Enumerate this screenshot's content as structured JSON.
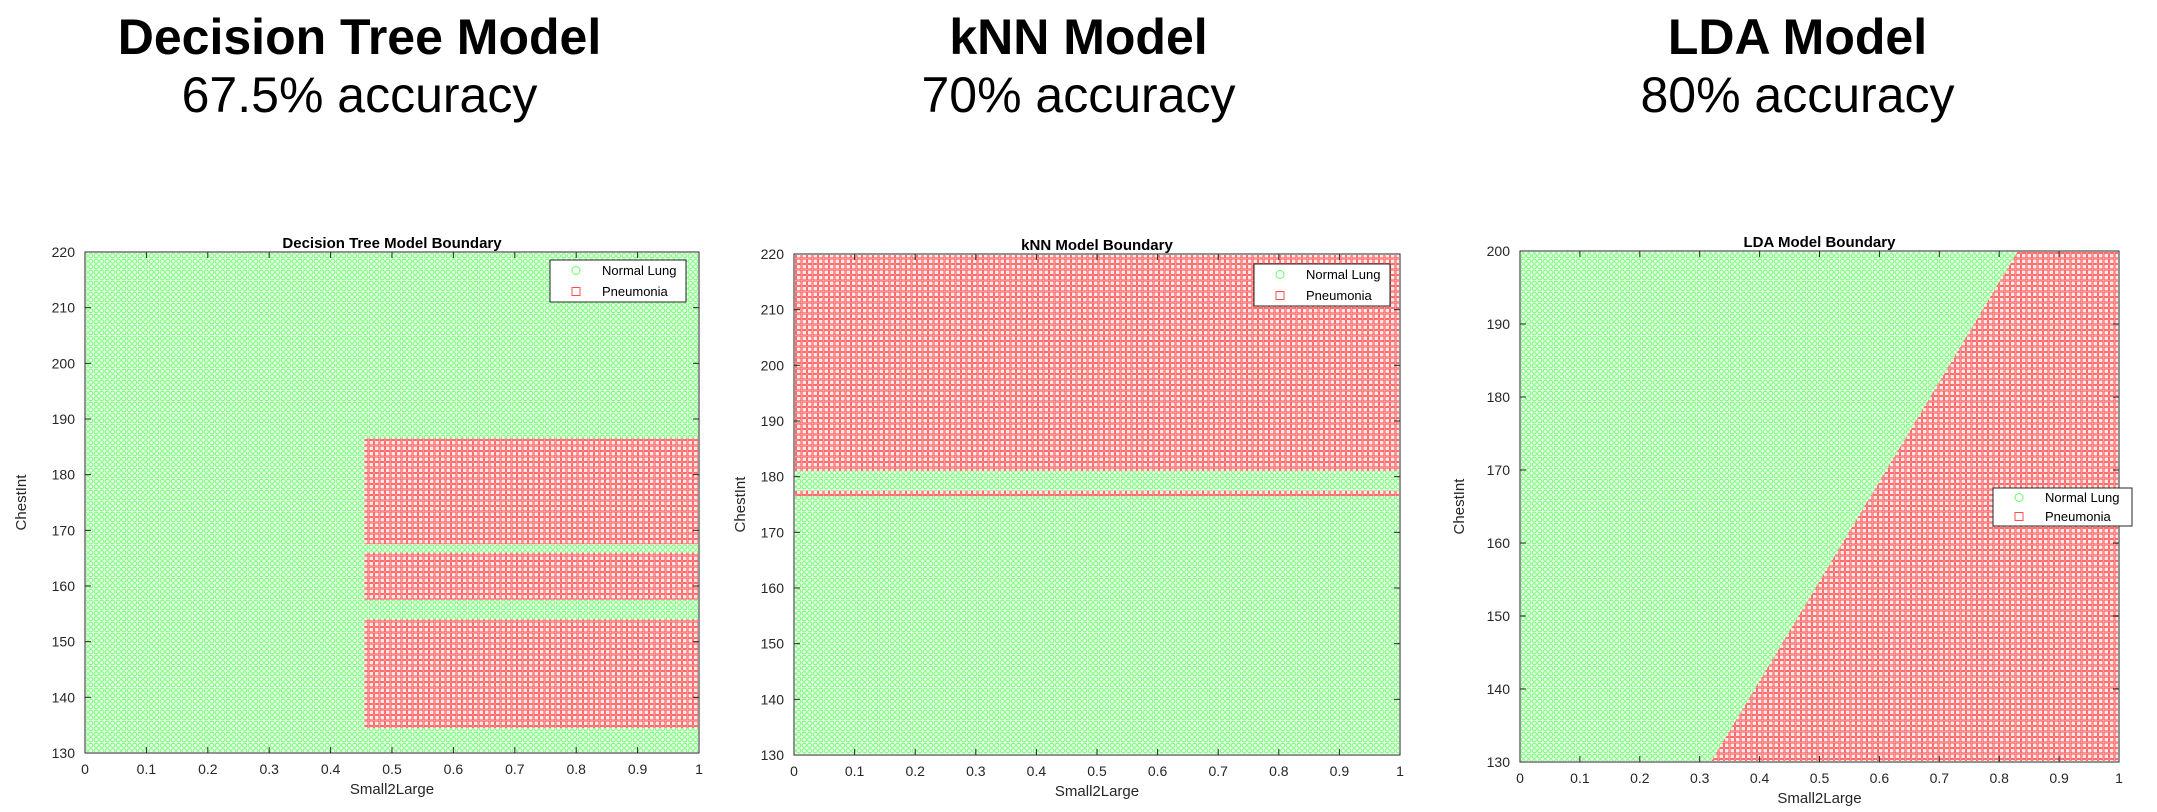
{
  "headers": [
    {
      "model": "Decision Tree Model",
      "accuracy": "67.5% accuracy"
    },
    {
      "model": "kNN Model",
      "accuracy": "70% accuracy"
    },
    {
      "model": "LDA Model",
      "accuracy": "80% accuracy"
    }
  ],
  "legend_labels": [
    "Normal Lung",
    "Pneumonia"
  ],
  "colors": {
    "normal": "#66ff66",
    "pneumonia": "#ff4d4d"
  },
  "chart_data": [
    {
      "type": "scatter",
      "title": "Decision Tree Model Boundary",
      "xlabel": "Small2Large",
      "ylabel": "ChestInt",
      "xlim": [
        0,
        1
      ],
      "ylim": [
        130,
        220
      ],
      "xticks": [
        "0",
        "0.1",
        "0.2",
        "0.3",
        "0.4",
        "0.5",
        "0.6",
        "0.7",
        "0.8",
        "0.9",
        "1"
      ],
      "yticks": [
        "130",
        "140",
        "150",
        "160",
        "170",
        "180",
        "190",
        "200",
        "210",
        "220"
      ],
      "legend_position": "top-right",
      "series": [
        {
          "name": "Normal Lung",
          "marker": "circle",
          "region": "all points outside the Pneumonia rectangles"
        },
        {
          "name": "Pneumonia",
          "marker": "square",
          "region": "rectangles",
          "rects": [
            {
              "x": [
                0.455,
                1.0
              ],
              "y": [
                134.5,
                154.0
              ]
            },
            {
              "x": [
                0.455,
                1.0
              ],
              "y": [
                157.5,
                166.0
              ]
            },
            {
              "x": [
                0.455,
                1.0
              ],
              "y": [
                167.5,
                186.5
              ]
            }
          ]
        }
      ]
    },
    {
      "type": "scatter",
      "title": "kNN Model Boundary",
      "xlabel": "Small2Large",
      "ylabel": "ChestInt",
      "xlim": [
        0,
        1
      ],
      "ylim": [
        130,
        220
      ],
      "xticks": [
        "0",
        "0.1",
        "0.2",
        "0.3",
        "0.4",
        "0.5",
        "0.6",
        "0.7",
        "0.8",
        "0.9",
        "1"
      ],
      "yticks": [
        "130",
        "140",
        "150",
        "160",
        "170",
        "180",
        "190",
        "200",
        "210",
        "220"
      ],
      "legend_position": "top-right",
      "series": [
        {
          "name": "Normal Lung",
          "marker": "circle",
          "region": "all points outside the Pneumonia rectangles"
        },
        {
          "name": "Pneumonia",
          "marker": "square",
          "region": "rectangles",
          "rects": [
            {
              "x": [
                0.0,
                1.0
              ],
              "y": [
                176.5,
                177.5
              ]
            },
            {
              "x": [
                0.0,
                1.0
              ],
              "y": [
                181.0,
                220.5
              ]
            }
          ]
        }
      ]
    },
    {
      "type": "scatter",
      "title": "LDA Model Boundary",
      "xlabel": "Small2Large",
      "ylabel": "ChestInt",
      "xlim": [
        0,
        1
      ],
      "ylim": [
        130,
        200
      ],
      "xticks": [
        "0",
        "0.1",
        "0.2",
        "0.3",
        "0.4",
        "0.5",
        "0.6",
        "0.7",
        "0.8",
        "0.9",
        "1"
      ],
      "yticks": [
        "130",
        "140",
        "150",
        "160",
        "170",
        "180",
        "190",
        "200"
      ],
      "legend_position": "right",
      "series": [
        {
          "name": "Normal Lung",
          "marker": "circle",
          "region": "left of the boundary line"
        },
        {
          "name": "Pneumonia",
          "marker": "square",
          "region": "right of the boundary line",
          "boundary_line": [
            [
              0.315,
              129.5
            ],
            [
              0.835,
              200.5
            ]
          ]
        }
      ]
    }
  ]
}
